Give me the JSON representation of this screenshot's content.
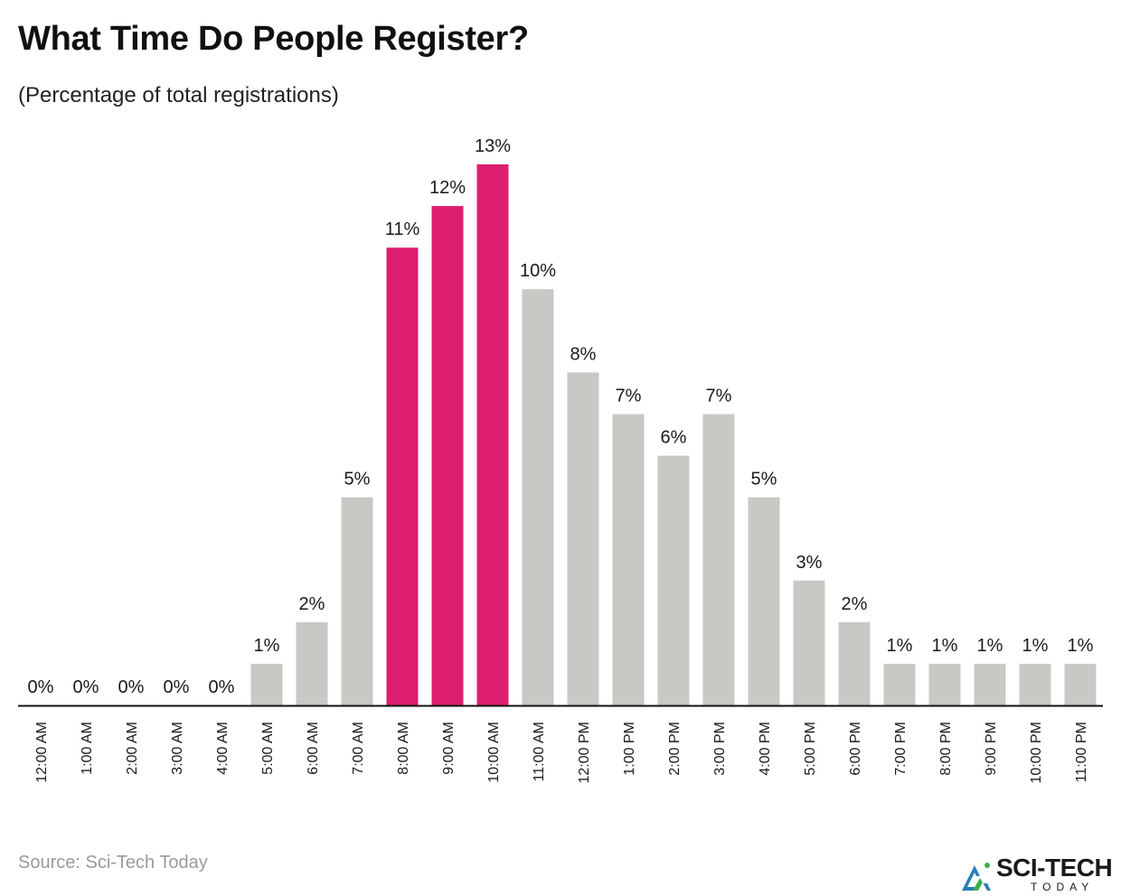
{
  "header": {
    "title": "What Time Do People Register?",
    "subtitle": "(Percentage of total registrations)"
  },
  "footer": {
    "source": "Source: Sci-Tech Today"
  },
  "logo": {
    "main_text": "SCI-TECH",
    "sub_text": "TODAY",
    "colors": [
      "#2a7fb8",
      "#3fae4a"
    ]
  },
  "colors": {
    "highlight": "#de1e6e",
    "default_bar": "#c9c8c4",
    "label_text": "#1a1a1a",
    "axis": "#111111"
  },
  "chart_data": {
    "type": "bar",
    "title": "What Time Do People Register?",
    "subtitle": "(Percentage of total registrations)",
    "xlabel": "",
    "ylabel": "",
    "ylim": [
      0,
      13
    ],
    "grid": false,
    "categories": [
      "12:00 AM",
      "1:00 AM",
      "2:00 AM",
      "3:00 AM",
      "4:00 AM",
      "5:00 AM",
      "6:00 AM",
      "7:00 AM",
      "8:00 AM",
      "9:00 AM",
      "10:00 AM",
      "11:00 AM",
      "12:00 PM",
      "1:00 PM",
      "2:00 PM",
      "3:00 PM",
      "4:00 PM",
      "5:00 PM",
      "6:00 PM",
      "7:00 PM",
      "8:00 PM",
      "9:00 PM",
      "10:00 PM",
      "11:00 PM"
    ],
    "values": [
      0,
      0,
      0,
      0,
      0,
      1,
      2,
      5,
      11,
      12,
      13,
      10,
      8,
      7,
      6,
      7,
      5,
      3,
      2,
      1,
      1,
      1,
      1,
      1
    ],
    "data_labels": [
      "0%",
      "0%",
      "0%",
      "0%",
      "0%",
      "1%",
      "2%",
      "5%",
      "11%",
      "12%",
      "13%",
      "10%",
      "8%",
      "7%",
      "6%",
      "7%",
      "5%",
      "3%",
      "2%",
      "1%",
      "1%",
      "1%",
      "1%",
      "1%"
    ],
    "highlighted": [
      "8:00 AM",
      "9:00 AM",
      "10:00 AM"
    ]
  }
}
